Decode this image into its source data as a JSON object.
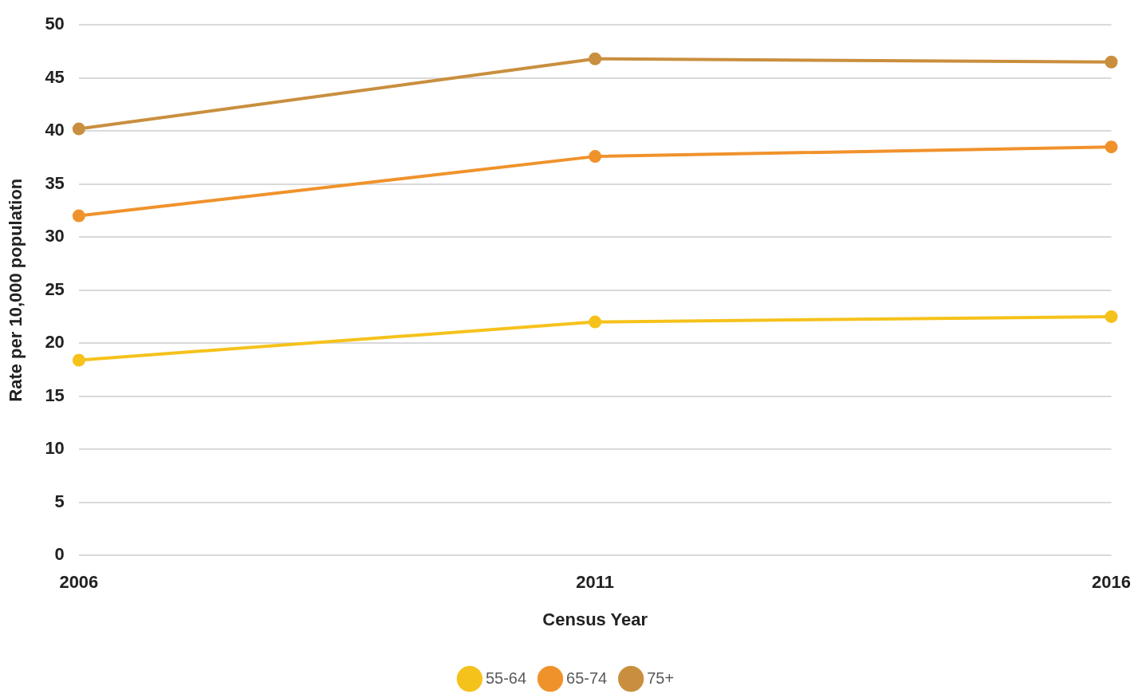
{
  "chart_data": {
    "type": "line",
    "xlabel": "Census Year",
    "ylabel": "Rate per 10,000 population",
    "categories": [
      "2006",
      "2011",
      "2016"
    ],
    "series": [
      {
        "name": "55-64",
        "color": "#f5c21b",
        "values": [
          18.4,
          22.0,
          22.5
        ]
      },
      {
        "name": "65-74",
        "color": "#f0922b",
        "values": [
          32.0,
          37.6,
          38.5
        ]
      },
      {
        "name": "75+",
        "color": "#c98f3e",
        "values": [
          40.2,
          46.8,
          46.5
        ]
      }
    ],
    "ylim": [
      0,
      50
    ],
    "yticks": [
      0,
      5,
      10,
      15,
      20,
      25,
      30,
      35,
      40,
      45,
      50
    ],
    "grid": "y",
    "legend": "bottom",
    "marker": "circle",
    "line_style": "solid"
  }
}
